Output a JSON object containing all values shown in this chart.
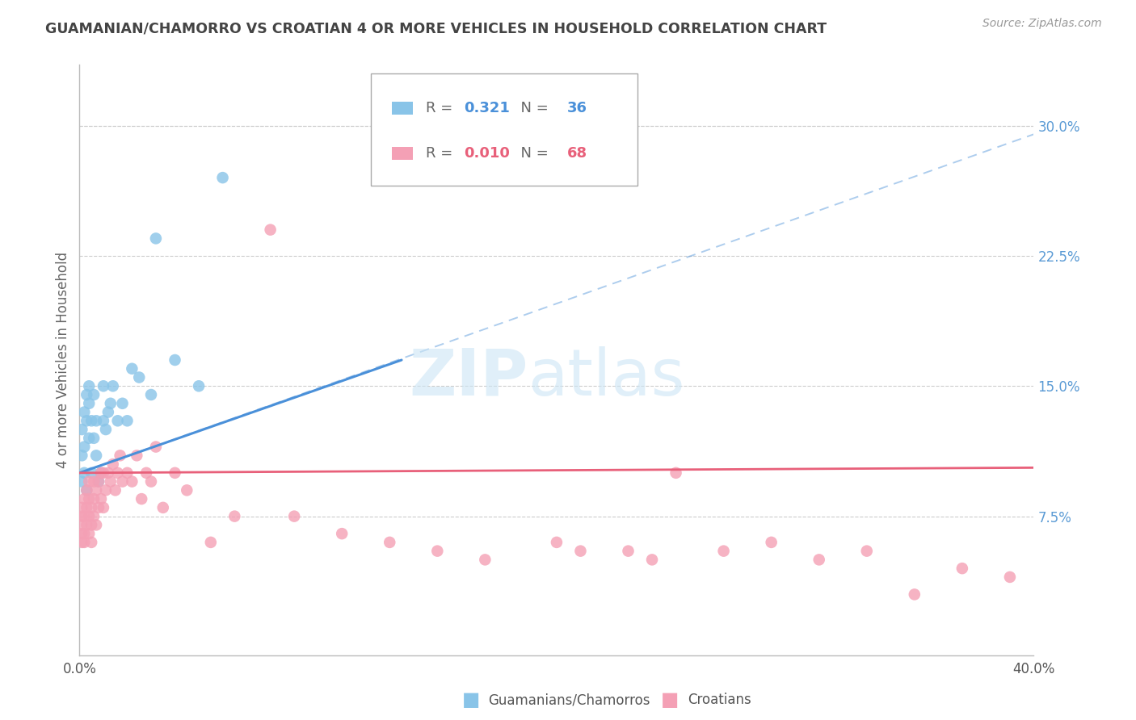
{
  "title": "GUAMANIAN/CHAMORRO VS CROATIAN 4 OR MORE VEHICLES IN HOUSEHOLD CORRELATION CHART",
  "source": "Source: ZipAtlas.com",
  "ylabel": "4 or more Vehicles in Household",
  "xlim": [
    0.0,
    0.4
  ],
  "ylim": [
    -0.005,
    0.335
  ],
  "xticks": [
    0.0,
    0.05,
    0.1,
    0.15,
    0.2,
    0.25,
    0.3,
    0.35,
    0.4
  ],
  "xticklabels": [
    "0.0%",
    "",
    "",
    "",
    "",
    "",
    "",
    "",
    "40.0%"
  ],
  "right_yticks": [
    0.075,
    0.15,
    0.225,
    0.3
  ],
  "right_yticklabels": [
    "7.5%",
    "15.0%",
    "22.5%",
    "30.0%"
  ],
  "blue_R": 0.321,
  "blue_N": 36,
  "pink_R": 0.01,
  "pink_N": 68,
  "blue_color": "#89c4e8",
  "pink_color": "#f4a0b5",
  "blue_line_color": "#4a90d9",
  "pink_line_color": "#e8607a",
  "right_tick_color": "#5b9bd5",
  "legend_label_blue": "Guamanians/Chamorros",
  "legend_label_pink": "Croatians",
  "watermark_zip": "ZIP",
  "watermark_atlas": "atlas",
  "background_color": "#ffffff",
  "grid_color": "#cccccc",
  "title_color": "#444444",
  "blue_scatter_x": [
    0.001,
    0.001,
    0.001,
    0.002,
    0.002,
    0.002,
    0.003,
    0.003,
    0.003,
    0.004,
    0.004,
    0.004,
    0.005,
    0.005,
    0.006,
    0.006,
    0.007,
    0.007,
    0.008,
    0.009,
    0.01,
    0.01,
    0.011,
    0.012,
    0.013,
    0.014,
    0.016,
    0.018,
    0.02,
    0.022,
    0.025,
    0.03,
    0.032,
    0.04,
    0.05,
    0.06
  ],
  "blue_scatter_y": [
    0.095,
    0.11,
    0.125,
    0.1,
    0.115,
    0.135,
    0.09,
    0.13,
    0.145,
    0.12,
    0.14,
    0.15,
    0.1,
    0.13,
    0.12,
    0.145,
    0.11,
    0.13,
    0.095,
    0.1,
    0.13,
    0.15,
    0.125,
    0.135,
    0.14,
    0.15,
    0.13,
    0.14,
    0.13,
    0.16,
    0.155,
    0.145,
    0.235,
    0.165,
    0.15,
    0.27
  ],
  "pink_scatter_x": [
    0.001,
    0.001,
    0.001,
    0.001,
    0.001,
    0.002,
    0.002,
    0.002,
    0.002,
    0.003,
    0.003,
    0.003,
    0.004,
    0.004,
    0.004,
    0.004,
    0.005,
    0.005,
    0.005,
    0.006,
    0.006,
    0.006,
    0.007,
    0.007,
    0.008,
    0.008,
    0.009,
    0.009,
    0.01,
    0.01,
    0.011,
    0.012,
    0.013,
    0.014,
    0.015,
    0.016,
    0.017,
    0.018,
    0.02,
    0.022,
    0.024,
    0.026,
    0.028,
    0.03,
    0.032,
    0.035,
    0.04,
    0.045,
    0.055,
    0.065,
    0.08,
    0.09,
    0.11,
    0.13,
    0.15,
    0.17,
    0.2,
    0.21,
    0.23,
    0.24,
    0.25,
    0.27,
    0.29,
    0.31,
    0.33,
    0.35,
    0.37,
    0.39
  ],
  "pink_scatter_y": [
    0.06,
    0.065,
    0.07,
    0.075,
    0.08,
    0.06,
    0.065,
    0.075,
    0.085,
    0.07,
    0.08,
    0.09,
    0.065,
    0.075,
    0.085,
    0.095,
    0.06,
    0.07,
    0.08,
    0.075,
    0.085,
    0.095,
    0.07,
    0.09,
    0.08,
    0.095,
    0.085,
    0.1,
    0.08,
    0.1,
    0.09,
    0.1,
    0.095,
    0.105,
    0.09,
    0.1,
    0.11,
    0.095,
    0.1,
    0.095,
    0.11,
    0.085,
    0.1,
    0.095,
    0.115,
    0.08,
    0.1,
    0.09,
    0.06,
    0.075,
    0.24,
    0.075,
    0.065,
    0.06,
    0.055,
    0.05,
    0.06,
    0.055,
    0.055,
    0.05,
    0.1,
    0.055,
    0.06,
    0.05,
    0.055,
    0.03,
    0.045,
    0.04
  ],
  "blue_line_x0": 0.0,
  "blue_line_y0": 0.1,
  "blue_line_x1": 0.135,
  "blue_line_y1": 0.165,
  "pink_line_x0": 0.0,
  "pink_line_y0": 0.1,
  "pink_line_x1": 0.4,
  "pink_line_y1": 0.103,
  "dashed_line_x0": 0.0,
  "dashed_line_y0": 0.1,
  "dashed_line_x1": 0.4,
  "dashed_line_y1": 0.295
}
